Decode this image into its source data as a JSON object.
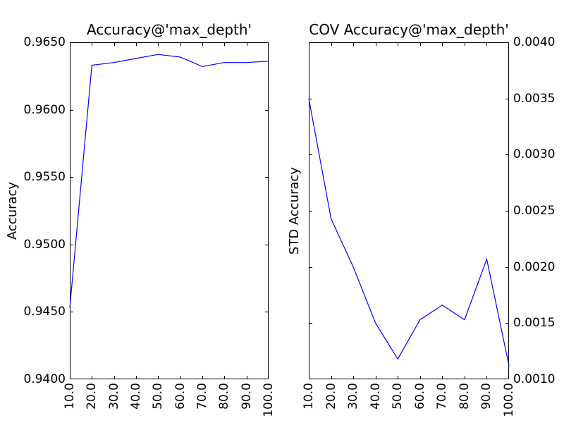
{
  "figure": {
    "background": "#ffffff",
    "axis_color": "#000000"
  },
  "chart_data": [
    {
      "type": "line",
      "title": "Accuracy@'max_depth'",
      "xlabel": "",
      "ylabel": "Accuracy",
      "legend_position": "none",
      "grid": false,
      "line_color": "#0000ff",
      "xlim": [
        10,
        100
      ],
      "ylim": [
        0.94,
        0.965
      ],
      "x": [
        10,
        20,
        30,
        40,
        50,
        60,
        70,
        80,
        90,
        100
      ],
      "values": [
        0.9453,
        0.9633,
        0.9635,
        0.9638,
        0.9641,
        0.9639,
        0.9632,
        0.9635,
        0.9635,
        0.9636
      ],
      "xticks": [
        "10.0",
        "20.0",
        "30.0",
        "40.0",
        "50.0",
        "60.0",
        "70.0",
        "80.0",
        "90.0",
        "100.0"
      ],
      "yticks": [
        "0.9400",
        "0.9450",
        "0.9500",
        "0.9550",
        "0.9600",
        "0.9650"
      ],
      "ytick_side": "left"
    },
    {
      "type": "line",
      "title": "COV Accuracy@'max_depth'",
      "xlabel": "",
      "ylabel": "STD Accuracy",
      "legend_position": "none",
      "grid": false,
      "line_color": "#0000ff",
      "xlim": [
        10,
        100
      ],
      "ylim": [
        0.001,
        0.004
      ],
      "x": [
        10,
        20,
        30,
        40,
        50,
        60,
        70,
        80,
        90,
        100
      ],
      "values": [
        0.0035,
        0.00243,
        0.002,
        0.0015,
        0.00118,
        0.00153,
        0.00166,
        0.00153,
        0.00207,
        0.00112
      ],
      "xticks": [
        "10.0",
        "20.0",
        "30.0",
        "40.0",
        "50.0",
        "60.0",
        "70.0",
        "80.0",
        "90.0",
        "100.0"
      ],
      "yticks": [
        "0.0010",
        "0.0015",
        "0.0020",
        "0.0025",
        "0.0030",
        "0.0035",
        "0.0040"
      ],
      "ytick_side": "right"
    }
  ]
}
